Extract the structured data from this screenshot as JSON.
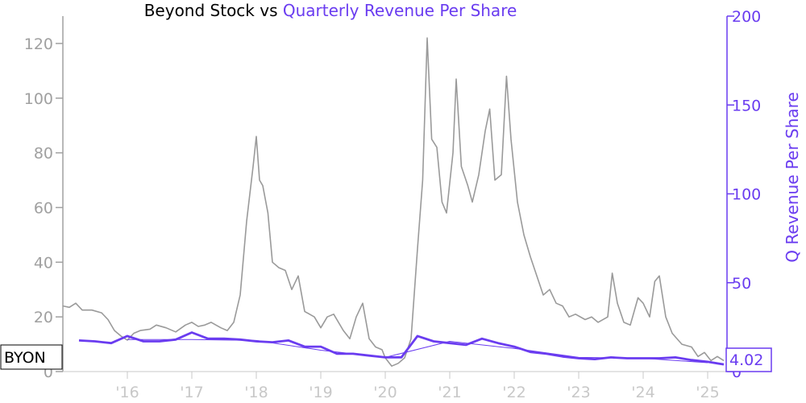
{
  "chart_data": {
    "type": "line",
    "title": "Beyond Stock vs",
    "title_accent": "Quarterly Revenue Per Share",
    "ylabel_right": "Q Revenue Per Share",
    "ylim_left": [
      0,
      130
    ],
    "ylim_right": [
      0,
      200
    ],
    "yticks_left": [
      0,
      20,
      40,
      60,
      80,
      100,
      120
    ],
    "yticks_right": [
      0,
      50,
      100,
      150,
      200
    ],
    "xlim": [
      2015.0,
      2025.3
    ],
    "xticks": [
      {
        "x": 2016,
        "label": "'16"
      },
      {
        "x": 2017,
        "label": "'17"
      },
      {
        "x": 2018,
        "label": "'18"
      },
      {
        "x": 2019,
        "label": "'19"
      },
      {
        "x": 2020,
        "label": "'20"
      },
      {
        "x": 2021,
        "label": "'21"
      },
      {
        "x": 2022,
        "label": "'22"
      },
      {
        "x": 2023,
        "label": "'23"
      },
      {
        "x": 2024,
        "label": "'24"
      },
      {
        "x": 2025,
        "label": "'25"
      }
    ],
    "ticker_label": "BYON",
    "last_value_label": "4.02",
    "colors": {
      "stock": "#9a9a9a",
      "revenue": "#6a3cf0",
      "axis_left": "#a0a0a0",
      "axis_right": "#6a3cf0"
    },
    "series": [
      {
        "axis": "left",
        "values": [
          [
            2015.0,
            24.0
          ],
          [
            2015.1,
            23.5
          ],
          [
            2015.2,
            25.0
          ],
          [
            2015.3,
            22.5
          ],
          [
            2015.45,
            22.5
          ],
          [
            2015.6,
            21.5
          ],
          [
            2015.7,
            19.0
          ],
          [
            2015.8,
            15.0
          ],
          [
            2015.9,
            13.0
          ],
          [
            2016.0,
            11.5
          ],
          [
            2016.1,
            14.0
          ],
          [
            2016.2,
            15.0
          ],
          [
            2016.35,
            15.5
          ],
          [
            2016.45,
            17.0
          ],
          [
            2016.6,
            16.0
          ],
          [
            2016.75,
            14.5
          ],
          [
            2016.9,
            17.0
          ],
          [
            2017.0,
            18.0
          ],
          [
            2017.1,
            16.5
          ],
          [
            2017.2,
            17.0
          ],
          [
            2017.3,
            18.0
          ],
          [
            2017.45,
            16.0
          ],
          [
            2017.55,
            15.0
          ],
          [
            2017.65,
            18.0
          ],
          [
            2017.75,
            28.0
          ],
          [
            2017.85,
            55.0
          ],
          [
            2017.95,
            75.0
          ],
          [
            2018.0,
            86.0
          ],
          [
            2018.05,
            70.0
          ],
          [
            2018.1,
            68.0
          ],
          [
            2018.18,
            58.0
          ],
          [
            2018.25,
            40.0
          ],
          [
            2018.35,
            38.0
          ],
          [
            2018.45,
            37.0
          ],
          [
            2018.55,
            30.0
          ],
          [
            2018.65,
            35.0
          ],
          [
            2018.75,
            22.0
          ],
          [
            2018.9,
            20.0
          ],
          [
            2019.0,
            16.0
          ],
          [
            2019.1,
            20.0
          ],
          [
            2019.2,
            21.0
          ],
          [
            2019.35,
            15.0
          ],
          [
            2019.45,
            12.0
          ],
          [
            2019.55,
            20.0
          ],
          [
            2019.65,
            25.0
          ],
          [
            2019.75,
            12.0
          ],
          [
            2019.85,
            9.0
          ],
          [
            2019.95,
            8.0
          ],
          [
            2020.0,
            5.0
          ],
          [
            2020.1,
            2.0
          ],
          [
            2020.2,
            3.0
          ],
          [
            2020.3,
            5.0
          ],
          [
            2020.4,
            12.0
          ],
          [
            2020.5,
            45.0
          ],
          [
            2020.58,
            70.0
          ],
          [
            2020.65,
            122.0
          ],
          [
            2020.72,
            85.0
          ],
          [
            2020.8,
            82.0
          ],
          [
            2020.88,
            62.0
          ],
          [
            2020.95,
            58.0
          ],
          [
            2021.05,
            80.0
          ],
          [
            2021.1,
            107.0
          ],
          [
            2021.18,
            75.0
          ],
          [
            2021.28,
            68.0
          ],
          [
            2021.35,
            62.0
          ],
          [
            2021.45,
            72.0
          ],
          [
            2021.55,
            88.0
          ],
          [
            2021.62,
            96.0
          ],
          [
            2021.7,
            70.0
          ],
          [
            2021.8,
            72.0
          ],
          [
            2021.88,
            108.0
          ],
          [
            2021.95,
            85.0
          ],
          [
            2022.05,
            62.0
          ],
          [
            2022.15,
            50.0
          ],
          [
            2022.25,
            42.0
          ],
          [
            2022.35,
            35.0
          ],
          [
            2022.45,
            28.0
          ],
          [
            2022.55,
            30.0
          ],
          [
            2022.65,
            25.0
          ],
          [
            2022.75,
            24.0
          ],
          [
            2022.85,
            20.0
          ],
          [
            2022.95,
            21.0
          ],
          [
            2023.1,
            19.0
          ],
          [
            2023.2,
            20.0
          ],
          [
            2023.3,
            18.0
          ],
          [
            2023.45,
            20.0
          ],
          [
            2023.52,
            36.0
          ],
          [
            2023.6,
            25.0
          ],
          [
            2023.7,
            18.0
          ],
          [
            2023.8,
            17.0
          ],
          [
            2023.92,
            27.0
          ],
          [
            2024.0,
            25.0
          ],
          [
            2024.1,
            20.0
          ],
          [
            2024.18,
            33.0
          ],
          [
            2024.25,
            35.0
          ],
          [
            2024.35,
            20.0
          ],
          [
            2024.45,
            14.0
          ],
          [
            2024.6,
            10.0
          ],
          [
            2024.75,
            9.0
          ],
          [
            2024.85,
            5.5
          ],
          [
            2024.95,
            7.0
          ],
          [
            2025.05,
            4.0
          ],
          [
            2025.15,
            5.5
          ],
          [
            2025.25,
            4.0
          ]
        ]
      },
      {
        "axis": "right",
        "values": [
          [
            2015.25,
            17.5
          ],
          [
            2015.5,
            17.0
          ],
          [
            2015.75,
            16.0
          ],
          [
            2016.0,
            20.0
          ],
          [
            2016.25,
            17.0
          ],
          [
            2016.5,
            17.0
          ],
          [
            2016.75,
            18.0
          ],
          [
            2017.0,
            22.0
          ],
          [
            2017.25,
            18.5
          ],
          [
            2017.5,
            18.5
          ],
          [
            2017.75,
            18.0
          ],
          [
            2018.0,
            17.0
          ],
          [
            2018.25,
            16.5
          ],
          [
            2018.5,
            17.5
          ],
          [
            2018.75,
            14.0
          ],
          [
            2019.0,
            14.0
          ],
          [
            2019.25,
            10.0
          ],
          [
            2019.5,
            10.0
          ],
          [
            2019.75,
            9.0
          ],
          [
            2020.0,
            8.0
          ],
          [
            2020.25,
            8.0
          ],
          [
            2020.5,
            20.0
          ],
          [
            2020.75,
            17.0
          ],
          [
            2021.0,
            16.0
          ],
          [
            2021.25,
            15.0
          ],
          [
            2021.5,
            18.5
          ],
          [
            2021.75,
            16.0
          ],
          [
            2022.0,
            14.0
          ],
          [
            2022.25,
            11.0
          ],
          [
            2022.5,
            10.0
          ],
          [
            2022.75,
            8.5
          ],
          [
            2023.0,
            7.5
          ],
          [
            2023.25,
            7.0
          ],
          [
            2023.5,
            8.0
          ],
          [
            2023.75,
            7.5
          ],
          [
            2024.0,
            7.5
          ],
          [
            2024.25,
            7.5
          ],
          [
            2024.5,
            8.0
          ],
          [
            2024.75,
            6.5
          ],
          [
            2025.0,
            5.5
          ],
          [
            2025.25,
            4.02
          ]
        ]
      },
      {
        "axis": "right",
        "values": [
          [
            2016.0,
            18.0
          ],
          [
            2017.0,
            18.0
          ],
          [
            2018.0,
            17.5
          ],
          [
            2019.0,
            12.0
          ],
          [
            2020.0,
            8.0
          ],
          [
            2021.0,
            17.0
          ],
          [
            2022.0,
            13.0
          ],
          [
            2023.0,
            8.0
          ],
          [
            2024.0,
            7.5
          ],
          [
            2025.0,
            5.0
          ]
        ]
      }
    ]
  }
}
